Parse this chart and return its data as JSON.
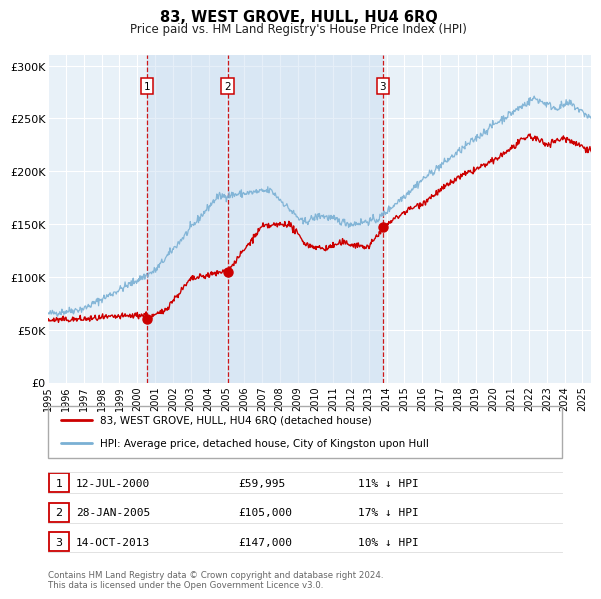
{
  "title": "83, WEST GROVE, HULL, HU4 6RQ",
  "subtitle": "Price paid vs. HM Land Registry's House Price Index (HPI)",
  "legend_line1": "83, WEST GROVE, HULL, HU4 6RQ (detached house)",
  "legend_line2": "HPI: Average price, detached house, City of Kingston upon Hull",
  "red_color": "#cc0000",
  "blue_color": "#7ab0d4",
  "sale_points": [
    {
      "label": "1",
      "date_x": 2000.54,
      "price": 59995,
      "hpi_diff": "11% ↓ HPI",
      "date_str": "12-JUL-2000",
      "price_str": "£59,995"
    },
    {
      "label": "2",
      "date_x": 2005.07,
      "price": 105000,
      "hpi_diff": "17% ↓ HPI",
      "date_str": "28-JAN-2005",
      "price_str": "£105,000"
    },
    {
      "label": "3",
      "date_x": 2013.79,
      "price": 147000,
      "hpi_diff": "10% ↓ HPI",
      "date_str": "14-OCT-2013",
      "price_str": "£147,000"
    }
  ],
  "ylim": [
    0,
    310000
  ],
  "yticks": [
    0,
    50000,
    100000,
    150000,
    200000,
    250000,
    300000
  ],
  "ytick_labels": [
    "£0",
    "£50K",
    "£100K",
    "£150K",
    "£200K",
    "£250K",
    "£300K"
  ],
  "xmin": 1995.0,
  "xmax": 2025.5,
  "background_color": "#dce8f5",
  "shading_color": "#dce8f5",
  "plot_outer_bg": "#e8f0f8",
  "footer": "Contains HM Land Registry data © Crown copyright and database right 2024.\nThis data is licensed under the Open Government Licence v3.0."
}
